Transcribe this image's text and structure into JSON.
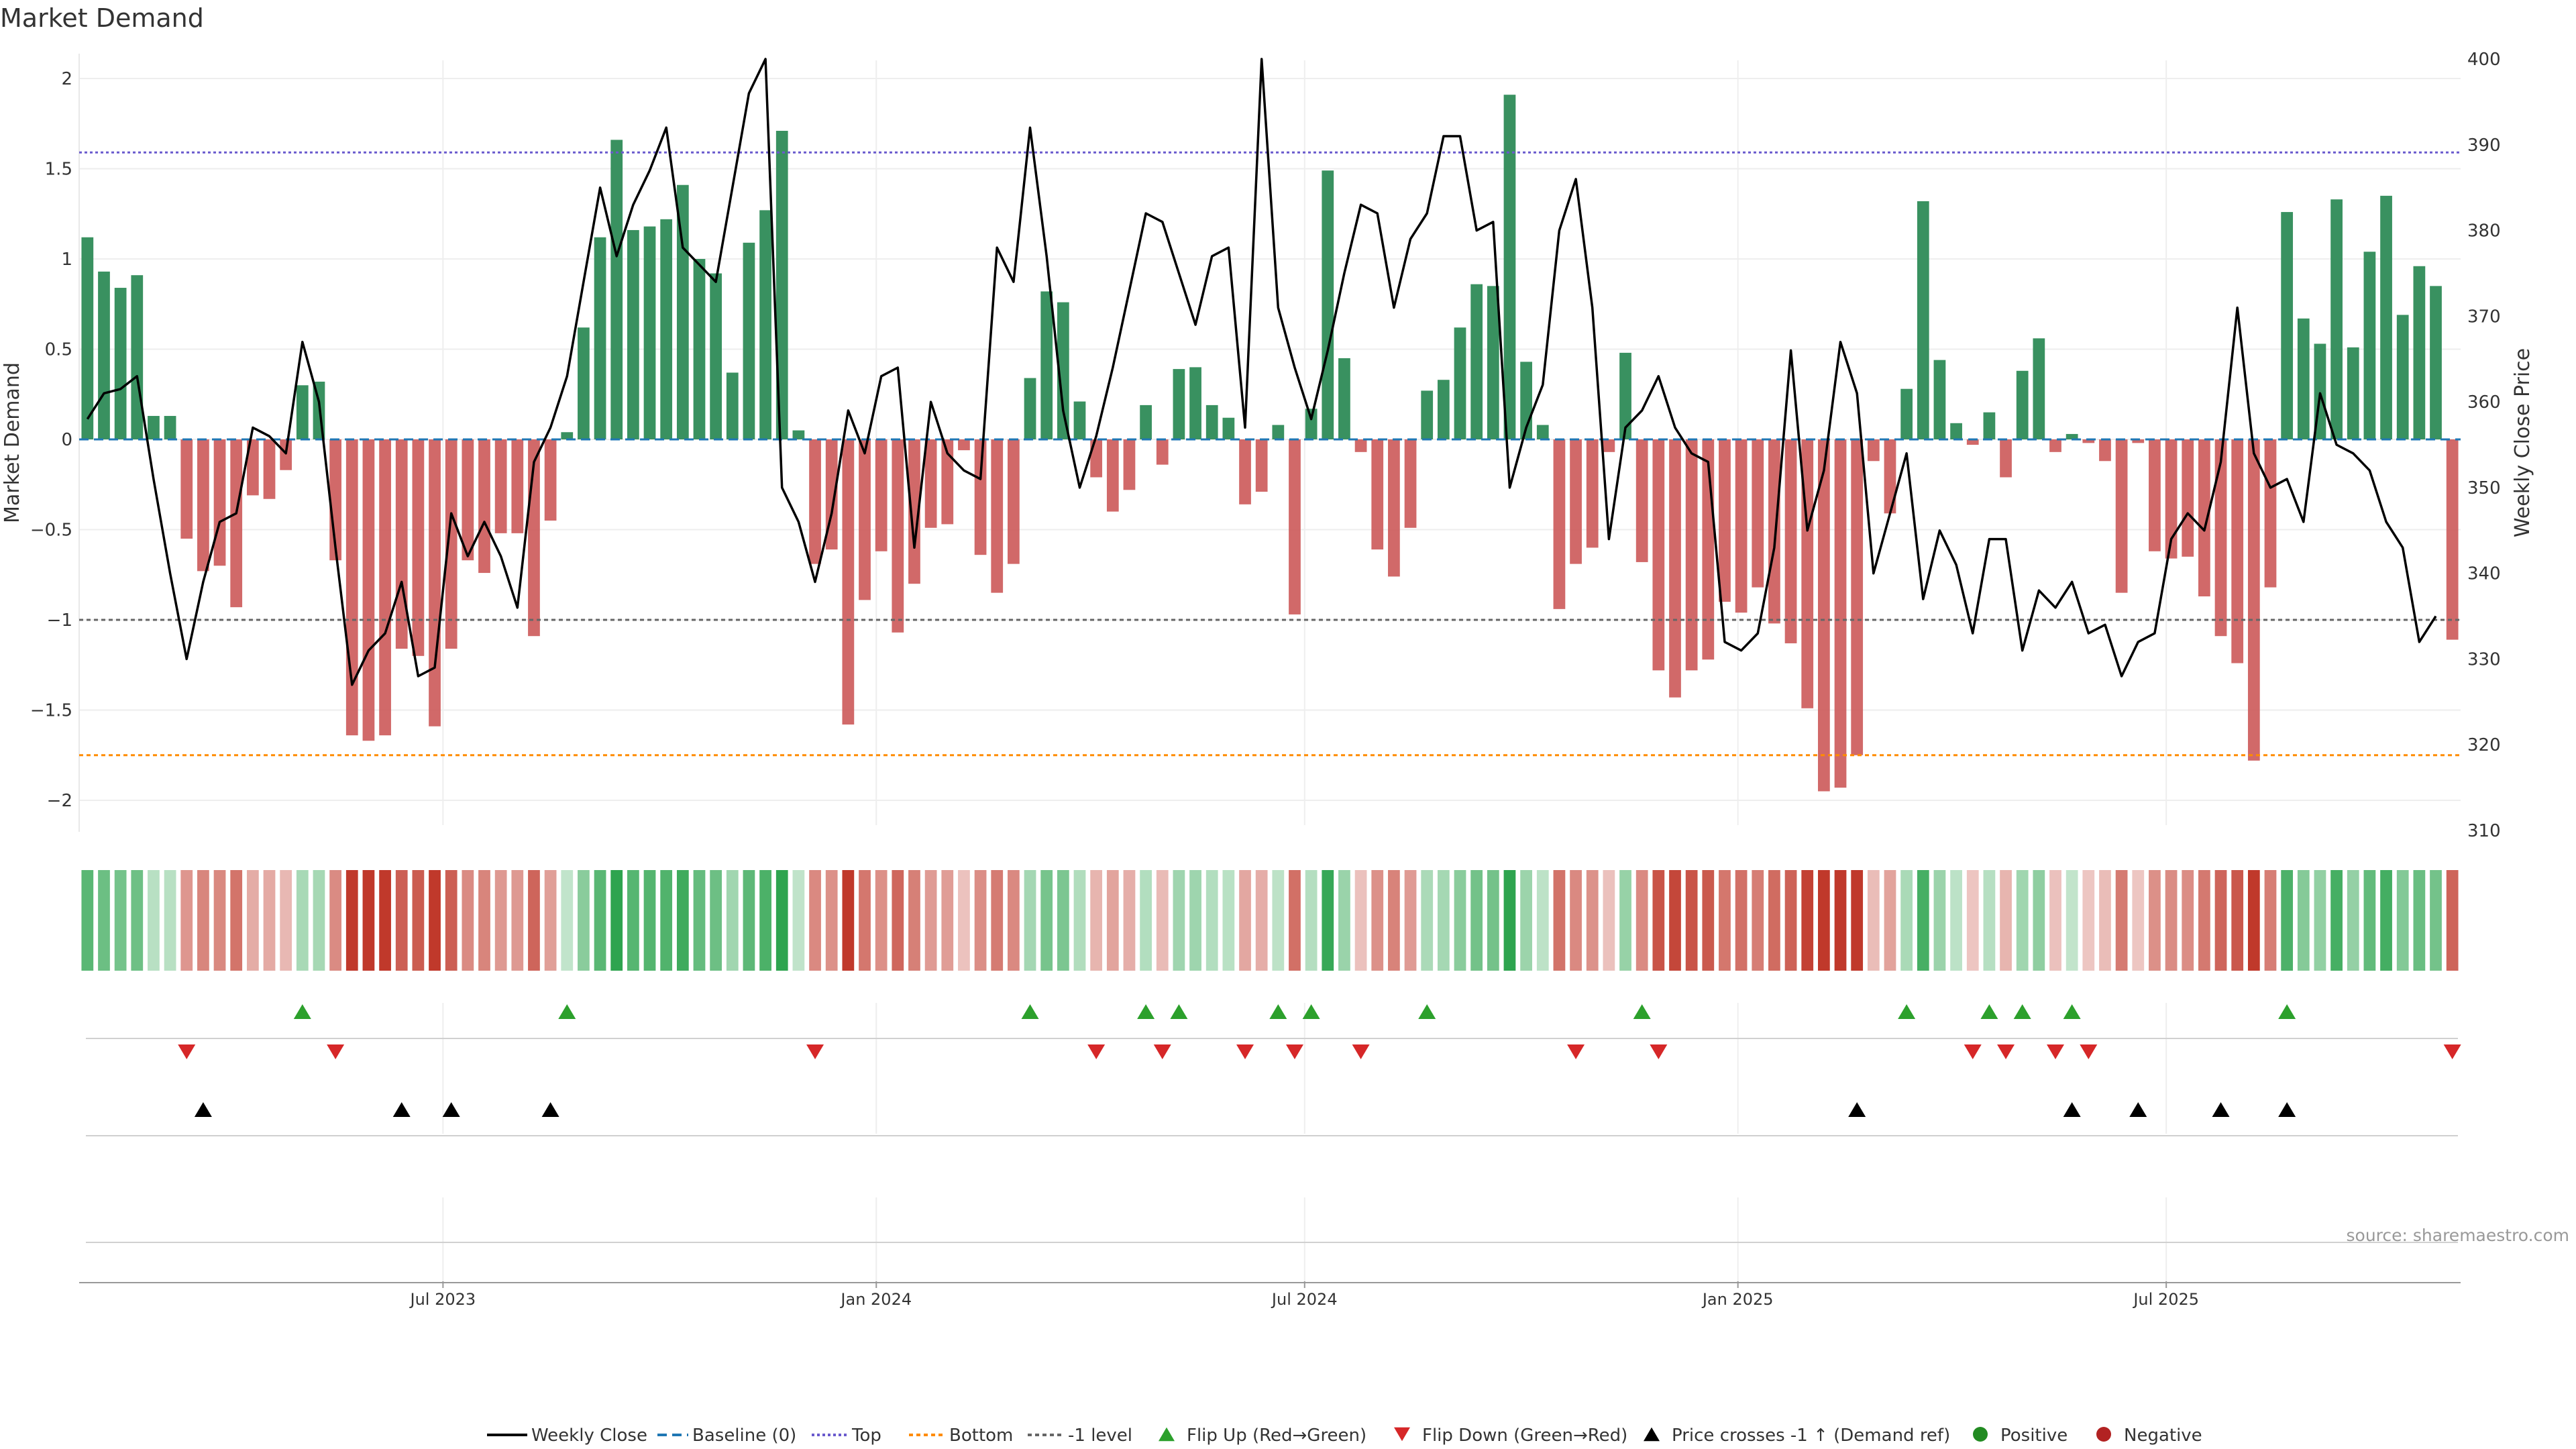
{
  "colors": {
    "positive": "#2e8b57",
    "negative": "#cd5c5c",
    "price_line": "#000000",
    "top_line": "#6a5acd",
    "bottom_line": "#ff8c00",
    "minus1_line": "#666666",
    "baseline": "#1f77b4",
    "flip_up": "#2ca02c",
    "flip_down": "#d62728",
    "cross": "#000000",
    "legend_positive": "#228b22",
    "legend_negative": "#b22222"
  },
  "chart_data": {
    "type": "bar+line",
    "title": "Market Demand",
    "source": "source: sharemaestro.com",
    "left_axis": {
      "label": "Market Demand",
      "range": [
        -2.1,
        2.1
      ],
      "ticks": [
        2,
        1.5,
        1,
        0.5,
        0,
        -0.5,
        -1,
        -1.5,
        -2
      ],
      "tick_labels": [
        "2",
        "1.5",
        "1",
        "0.5",
        "0",
        "−0.5",
        "−1",
        "−1.5",
        "−2"
      ]
    },
    "right_axis": {
      "label": "Weekly Close Price",
      "range": [
        310,
        400
      ],
      "ticks": [
        400,
        390,
        380,
        370,
        360,
        350,
        340,
        330,
        320,
        310
      ],
      "tick_labels": [
        "400",
        "390",
        "380",
        "370",
        "360",
        "350",
        "340",
        "330",
        "320",
        "310"
      ]
    },
    "reference_lines": {
      "top": 1.59,
      "bottom": -1.75,
      "minus_one": -1,
      "baseline": 0
    },
    "x_ticks": [
      {
        "label": "Jul 2023",
        "week": 21.5
      },
      {
        "label": "Jan 2024",
        "week": 47.7
      },
      {
        "label": "Jul 2024",
        "week": 73.6
      },
      {
        "label": "Jan 2025",
        "week": 99.8
      },
      {
        "label": "Jul 2025",
        "week": 125.7
      }
    ],
    "demand": [
      1.12,
      0.93,
      0.84,
      0.91,
      0.13,
      0.13,
      -0.55,
      -0.73,
      -0.7,
      -0.93,
      -0.31,
      -0.33,
      -0.17,
      0.3,
      0.32,
      -0.67,
      -1.64,
      -1.67,
      -1.64,
      -1.16,
      -1.2,
      -1.59,
      -1.16,
      -0.67,
      -0.74,
      -0.52,
      -0.52,
      -1.09,
      -0.45,
      0.04,
      0.62,
      1.12,
      1.66,
      1.16,
      1.18,
      1.22,
      1.41,
      1.0,
      0.92,
      0.37,
      1.09,
      1.27,
      1.71,
      0.05,
      -0.69,
      -0.61,
      -1.58,
      -0.89,
      -0.62,
      -1.07,
      -0.8,
      -0.49,
      -0.47,
      -0.06,
      -0.64,
      -0.85,
      -0.69,
      0.34,
      0.82,
      0.76,
      0.21,
      -0.21,
      -0.4,
      -0.28,
      0.19,
      -0.14,
      0.39,
      0.4,
      0.19,
      0.12,
      -0.36,
      -0.29,
      0.08,
      -0.97,
      0.17,
      1.49,
      0.45,
      -0.07,
      -0.61,
      -0.76,
      -0.49,
      0.27,
      0.33,
      0.62,
      0.86,
      0.85,
      1.91,
      0.43,
      0.08,
      -0.94,
      -0.69,
      -0.6,
      -0.07,
      0.48,
      -0.68,
      -1.28,
      -1.43,
      -1.28,
      -1.22,
      -0.9,
      -0.96,
      -0.82,
      -1.02,
      -1.13,
      -1.49,
      -1.95,
      -1.93,
      -1.75,
      -0.12,
      -0.41,
      0.28,
      1.32,
      0.44,
      0.09,
      -0.03,
      0.15,
      -0.21,
      0.38,
      0.56,
      -0.07,
      0.03,
      -0.02,
      -0.12,
      -0.85,
      -0.02,
      -0.62,
      -0.66,
      -0.65,
      -0.87,
      -1.09,
      -1.24,
      -1.78,
      -0.82,
      1.26,
      0.67,
      0.53,
      1.33,
      0.51,
      1.04,
      1.35,
      0.69,
      0.96,
      0.85,
      -1.11
    ],
    "weekly_close": [
      358,
      361,
      361.5,
      363,
      351,
      340,
      330,
      339,
      346,
      347,
      357,
      356,
      354,
      367,
      360,
      343,
      327,
      331,
      333,
      339,
      328,
      329,
      347,
      342,
      346,
      342,
      336,
      353,
      357,
      363,
      374,
      385,
      377,
      383,
      387,
      392,
      378,
      376,
      374,
      385,
      396,
      400,
      350,
      346,
      339,
      347,
      359,
      354,
      363,
      364,
      343,
      360,
      354,
      352,
      351,
      378,
      374,
      392,
      377,
      359,
      350,
      356,
      364,
      373,
      382,
      381,
      375,
      369,
      377,
      378,
      357,
      400,
      371,
      364,
      358,
      366,
      375,
      383,
      382,
      371,
      379,
      382,
      391,
      391,
      380,
      381,
      350,
      357,
      362,
      380,
      386,
      371,
      344,
      357,
      359,
      363,
      357,
      354,
      353,
      332,
      331,
      333,
      343,
      366,
      345,
      352,
      367,
      361,
      340,
      347,
      354,
      337,
      345,
      341,
      333,
      344,
      344,
      331,
      338,
      336,
      339,
      333,
      334,
      328,
      332,
      333,
      344,
      347,
      345,
      353,
      371,
      354,
      350,
      351,
      346,
      361,
      355,
      354,
      352,
      346,
      343,
      332,
      335
    ],
    "flip_up_weeks": [
      13,
      29,
      57,
      64,
      66,
      72,
      74,
      81,
      94,
      110,
      115,
      117,
      120,
      133
    ],
    "flip_down_weeks": [
      6,
      15,
      44,
      61,
      65,
      70,
      73,
      77,
      90,
      95,
      114,
      116,
      119,
      121,
      143
    ],
    "price_cross_weeks": [
      7,
      19,
      22,
      28,
      107,
      120,
      124,
      129,
      133
    ],
    "strip_color_note": "weekly demand heat-strip, intensity follows demand magnitude",
    "legend": [
      {
        "key": "line",
        "label": "Weekly Close"
      },
      {
        "key": "baseline",
        "label": "Baseline (0)"
      },
      {
        "key": "top",
        "label": "Top"
      },
      {
        "key": "bottom",
        "label": "Bottom"
      },
      {
        "key": "minus1",
        "label": "-1 level"
      },
      {
        "key": "flip_up",
        "label": "Flip Up (Red→Green)"
      },
      {
        "key": "flip_down",
        "label": "Flip Down (Green→Red)"
      },
      {
        "key": "cross",
        "label": "Price crosses -1 ↑ (Demand ref)"
      },
      {
        "key": "positive",
        "label": "Positive"
      },
      {
        "key": "negative",
        "label": "Negative"
      }
    ]
  }
}
